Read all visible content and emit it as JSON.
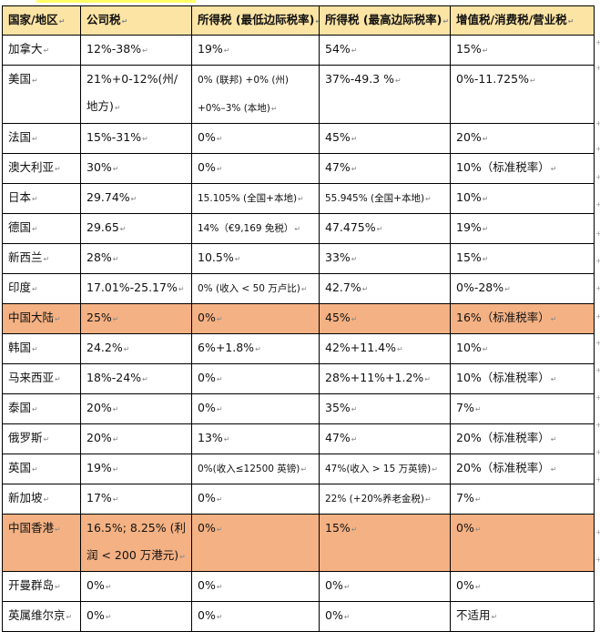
{
  "headers": [
    "国家/地区",
    "公司税",
    "所得税 (最低边际税率)",
    "所得税 (最高边际税率)",
    "增值税/消费税/营业税"
  ],
  "rows": [
    {
      "region": "加拿大",
      "corporate": "12%-38%",
      "income_min": "19%",
      "income_max": "54%",
      "vat": "15%",
      "highlight": false
    },
    {
      "region": "美国",
      "corporate": "21%+0-12%(州/地方)",
      "income_min": "0% (联邦) +0% (州) +0%–3% (本地)",
      "income_max": "37%-49.3 %",
      "vat": "0%-11.725%",
      "highlight": false
    },
    {
      "region": "法国",
      "corporate": "15%-31%",
      "income_min": "0%",
      "income_max": "45%",
      "vat": "20%",
      "highlight": false
    },
    {
      "region": "澳大利亚",
      "corporate": "30%",
      "income_min": "0%",
      "income_max": "47%",
      "vat": "10%（标准税率）",
      "highlight": false
    },
    {
      "region": "日本",
      "corporate": "29.74%",
      "income_min": "15.105% (全国+本地)",
      "income_max": "55.945% (全国+本地)",
      "vat": "10%",
      "highlight": false
    },
    {
      "region": "德国",
      "corporate": "29.65",
      "income_min": "14%（€9,169 免税）",
      "income_max": "47.475%",
      "vat": "19%",
      "highlight": false
    },
    {
      "region": "新西兰",
      "corporate": "28%",
      "income_min": "10.5%",
      "income_max": "33%",
      "vat": "15%",
      "highlight": false
    },
    {
      "region": "印度",
      "corporate": "17.01%-25.17%",
      "income_min": "0% (收入 < 50 万卢比)",
      "income_max": "42.7%",
      "vat": "0%-28%",
      "highlight": false
    },
    {
      "region": "中国大陆",
      "corporate": "25%",
      "income_min": "0%",
      "income_max": "45%",
      "vat": "16%（标准税率）",
      "highlight": true
    },
    {
      "region": "韩国",
      "corporate": "24.2%",
      "income_min": "6%+1.8%",
      "income_max": "42%+11.4%",
      "vat": "10%",
      "highlight": false
    },
    {
      "region": "马来西亚",
      "corporate": "18%-24%",
      "income_min": "0%",
      "income_max": "28%+11%+1.2%",
      "vat": "10%（标准税率）",
      "highlight": false
    },
    {
      "region": "泰国",
      "corporate": "20%",
      "income_min": "0%",
      "income_max": "35%",
      "vat": "7%",
      "highlight": false
    },
    {
      "region": "俄罗斯",
      "corporate": "20%",
      "income_min": "13%",
      "income_max": "47%",
      "vat": "20%（标准税率）",
      "highlight": false
    },
    {
      "region": "英国",
      "corporate": "19%",
      "income_min": "0%(收入≤12500 英镑)",
      "income_max": "47%(收入 > 15 万英镑)",
      "vat": "20%（标准税率）",
      "highlight": false
    },
    {
      "region": "新加坡",
      "corporate": "17%",
      "income_min": "0%",
      "income_max": "22% (+20%养老金税)",
      "vat": "7%",
      "highlight": false
    },
    {
      "region": "中国香港",
      "corporate": "16.5%; 8.25% (利润 < 200 万港元)",
      "income_min": "0%",
      "income_max": "15%",
      "vat": "0%",
      "highlight": true
    },
    {
      "region": "开曼群岛",
      "corporate": "0%",
      "income_min": "0%",
      "income_max": "0%",
      "vat": "0%",
      "highlight": false
    },
    {
      "region": "英属维尔京",
      "corporate": "0%",
      "income_min": "0%",
      "income_max": "0%",
      "vat": "不适用",
      "highlight": false
    }
  ],
  "colors": {
    "header_bg": "#fce4a4",
    "highlight_bg": "#f4b183",
    "top_strip": "#ffff66"
  }
}
